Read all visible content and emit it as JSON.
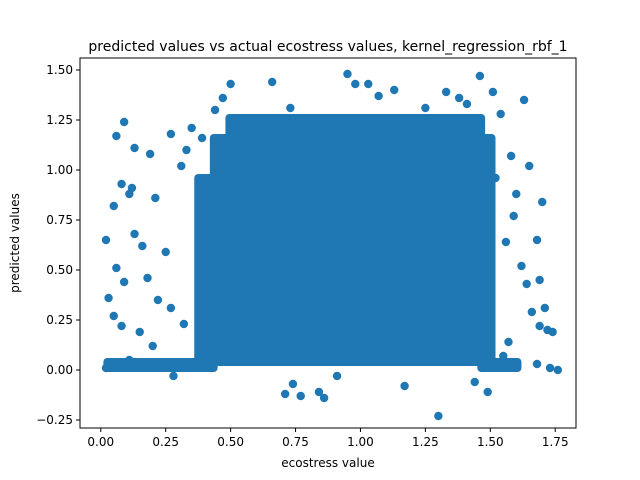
{
  "chart_data": {
    "type": "scatter",
    "title": "predicted values vs actual ecostress values, kernel_regression_rbf_1",
    "xlabel": "ecostress value",
    "ylabel": "predicted values",
    "xlim": [
      -0.08,
      1.83
    ],
    "ylim": [
      -0.29,
      1.56
    ],
    "x_ticks": [
      0.0,
      0.25,
      0.5,
      0.75,
      1.0,
      1.25,
      1.5,
      1.75
    ],
    "x_tick_labels": [
      "0.00",
      "0.25",
      "0.50",
      "0.75",
      "1.00",
      "1.25",
      "1.50",
      "1.75"
    ],
    "y_ticks": [
      -0.25,
      0.0,
      0.25,
      0.5,
      0.75,
      1.0,
      1.25,
      1.5
    ],
    "y_tick_labels": [
      "−0.25",
      "0.00",
      "0.25",
      "0.50",
      "0.75",
      "1.00",
      "1.25",
      "1.50"
    ],
    "grid": false,
    "marker_color": "#1f77b4",
    "series": [
      {
        "points": [
          [
            0.02,
            0.65
          ],
          [
            0.05,
            0.82
          ],
          [
            0.06,
            1.17
          ],
          [
            0.08,
            0.93
          ],
          [
            0.09,
            1.24
          ],
          [
            0.11,
            0.88
          ],
          [
            0.12,
            0.91
          ],
          [
            0.13,
            1.11
          ],
          [
            0.19,
            1.08
          ],
          [
            0.27,
            1.18
          ],
          [
            0.21,
            0.86
          ],
          [
            0.25,
            0.59
          ],
          [
            0.31,
            1.02
          ],
          [
            0.33,
            1.1
          ],
          [
            0.35,
            1.21
          ],
          [
            0.06,
            0.51
          ],
          [
            0.09,
            0.44
          ],
          [
            0.13,
            0.68
          ],
          [
            0.16,
            0.62
          ],
          [
            0.18,
            0.46
          ],
          [
            0.22,
            0.35
          ],
          [
            0.27,
            0.31
          ],
          [
            0.32,
            0.23
          ],
          [
            0.05,
            0.27
          ],
          [
            0.03,
            0.36
          ],
          [
            0.08,
            0.22
          ],
          [
            0.15,
            0.19
          ],
          [
            0.2,
            0.12
          ],
          [
            0.11,
            0.05
          ],
          [
            0.02,
            0.01
          ],
          [
            0.28,
            -0.03
          ],
          [
            0.41,
            0.45
          ],
          [
            0.39,
            1.16
          ],
          [
            0.44,
            1.3
          ],
          [
            0.47,
            1.36
          ],
          [
            0.5,
            1.43
          ],
          [
            0.66,
            1.44
          ],
          [
            0.73,
            1.31
          ],
          [
            0.77,
            -0.13
          ],
          [
            0.74,
            -0.07
          ],
          [
            0.71,
            -0.12
          ],
          [
            0.84,
            -0.11
          ],
          [
            0.86,
            -0.14
          ],
          [
            0.91,
            -0.03
          ],
          [
            0.95,
            1.48
          ],
          [
            0.98,
            1.43
          ],
          [
            1.03,
            1.43
          ],
          [
            1.07,
            1.37
          ],
          [
            1.13,
            1.4
          ],
          [
            1.17,
            -0.08
          ],
          [
            1.3,
            -0.23
          ],
          [
            1.25,
            1.31
          ],
          [
            1.33,
            1.39
          ],
          [
            1.38,
            1.36
          ],
          [
            1.41,
            1.33
          ],
          [
            1.46,
            1.47
          ],
          [
            1.44,
            -0.06
          ],
          [
            1.49,
            -0.11
          ],
          [
            1.51,
            1.39
          ],
          [
            1.54,
            1.28
          ],
          [
            1.58,
            1.07
          ],
          [
            1.6,
            0.88
          ],
          [
            1.63,
            1.35
          ],
          [
            1.65,
            1.02
          ],
          [
            1.7,
            0.84
          ],
          [
            1.68,
            0.65
          ],
          [
            1.62,
            0.52
          ],
          [
            1.64,
            0.43
          ],
          [
            1.66,
            0.29
          ],
          [
            1.69,
            0.22
          ],
          [
            1.72,
            0.2
          ],
          [
            1.74,
            0.19
          ],
          [
            1.57,
            0.14
          ],
          [
            1.55,
            0.07
          ],
          [
            1.73,
            0.01
          ],
          [
            1.76,
            0.0
          ],
          [
            1.71,
            0.31
          ],
          [
            1.69,
            0.45
          ],
          [
            1.59,
            0.77
          ],
          [
            1.56,
            0.64
          ],
          [
            1.52,
            0.96
          ],
          [
            1.53,
            0.02
          ],
          [
            1.68,
            0.03
          ]
        ]
      }
    ]
  }
}
